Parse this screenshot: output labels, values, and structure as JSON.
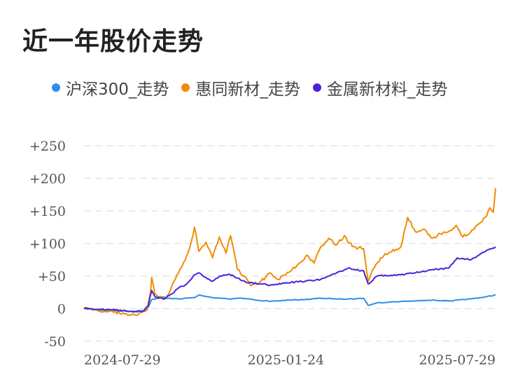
{
  "title": "近一年股价走势",
  "colors": {
    "csi300": "#2f8ee6",
    "huitong": "#f08c00",
    "metals": "#4a22d8",
    "grid": "#e5e5e5"
  },
  "chart_data": {
    "type": "line",
    "title": "近一年股价走势",
    "xlabel": "",
    "ylabel": "",
    "x_tick_labels": [
      "2024-07-29",
      "2025-01-24",
      "2025-07-29"
    ],
    "x_range": [
      "2024-07-29",
      "2025-07-29"
    ],
    "y_tick_labels": [
      "+250",
      "+200",
      "+150",
      "+100",
      "+50",
      "0",
      "-50"
    ],
    "y_tick_values": [
      250,
      200,
      150,
      100,
      50,
      0,
      -50
    ],
    "ylim": [
      -50,
      250
    ],
    "grid": "horizontal dashed",
    "legend_position": "top",
    "series": [
      {
        "name": "沪深300_走势",
        "color": "#2f8ee6",
        "points": [
          [
            "2024-07-29",
            0
          ],
          [
            "2024-08-12",
            -2
          ],
          [
            "2024-08-26",
            -3
          ],
          [
            "2024-09-09",
            -4
          ],
          [
            "2024-09-20",
            -3
          ],
          [
            "2024-09-24",
            2
          ],
          [
            "2024-09-27",
            14
          ],
          [
            "2024-10-08",
            18
          ],
          [
            "2024-10-09",
            16
          ],
          [
            "2024-10-21",
            15
          ],
          [
            "2024-11-04",
            17
          ],
          [
            "2024-11-08",
            21
          ],
          [
            "2024-11-20",
            17
          ],
          [
            "2024-12-05",
            15
          ],
          [
            "2024-12-16",
            16
          ],
          [
            "2024-12-31",
            13
          ],
          [
            "2025-01-10",
            11
          ],
          [
            "2025-01-24",
            13
          ],
          [
            "2025-02-10",
            14
          ],
          [
            "2025-02-24",
            16
          ],
          [
            "2025-03-10",
            15
          ],
          [
            "2025-03-24",
            15
          ],
          [
            "2025-04-03",
            16
          ],
          [
            "2025-04-07",
            5
          ],
          [
            "2025-04-15",
            9
          ],
          [
            "2025-05-05",
            11
          ],
          [
            "2025-05-20",
            12
          ],
          [
            "2025-06-05",
            13
          ],
          [
            "2025-06-20",
            12
          ],
          [
            "2025-07-07",
            15
          ],
          [
            "2025-07-20",
            18
          ],
          [
            "2025-07-29",
            21
          ]
        ]
      },
      {
        "name": "惠同新材_走势",
        "color": "#f08c00",
        "points": [
          [
            "2024-07-29",
            0
          ],
          [
            "2024-08-08",
            -2
          ],
          [
            "2024-08-20",
            -4
          ],
          [
            "2024-09-03",
            -8
          ],
          [
            "2024-09-13",
            -10
          ],
          [
            "2024-09-18",
            -6
          ],
          [
            "2024-09-23",
            -2
          ],
          [
            "2024-09-26",
            25
          ],
          [
            "2024-09-27",
            48
          ],
          [
            "2024-09-30",
            22
          ],
          [
            "2024-10-08",
            14
          ],
          [
            "2024-10-14",
            30
          ],
          [
            "2024-10-18",
            45
          ],
          [
            "2024-10-25",
            70
          ],
          [
            "2024-10-31",
            95
          ],
          [
            "2024-11-04",
            125
          ],
          [
            "2024-11-08",
            88
          ],
          [
            "2024-11-14",
            102
          ],
          [
            "2024-11-20",
            78
          ],
          [
            "2024-11-26",
            110
          ],
          [
            "2024-12-02",
            85
          ],
          [
            "2024-12-06",
            112
          ],
          [
            "2024-12-12",
            60
          ],
          [
            "2024-12-18",
            50
          ],
          [
            "2024-12-24",
            35
          ],
          [
            "2025-01-02",
            42
          ],
          [
            "2025-01-10",
            55
          ],
          [
            "2025-01-17",
            45
          ],
          [
            "2025-01-24",
            52
          ],
          [
            "2025-02-05",
            70
          ],
          [
            "2025-02-12",
            82
          ],
          [
            "2025-02-18",
            70
          ],
          [
            "2025-02-24",
            95
          ],
          [
            "2025-03-03",
            108
          ],
          [
            "2025-03-10",
            98
          ],
          [
            "2025-03-17",
            112
          ],
          [
            "2025-03-24",
            95
          ],
          [
            "2025-04-03",
            92
          ],
          [
            "2025-04-07",
            42
          ],
          [
            "2025-04-11",
            60
          ],
          [
            "2025-04-18",
            78
          ],
          [
            "2025-04-25",
            85
          ],
          [
            "2025-05-06",
            95
          ],
          [
            "2025-05-12",
            140
          ],
          [
            "2025-05-19",
            118
          ],
          [
            "2025-05-26",
            122
          ],
          [
            "2025-06-03",
            108
          ],
          [
            "2025-06-10",
            115
          ],
          [
            "2025-06-17",
            118
          ],
          [
            "2025-06-24",
            128
          ],
          [
            "2025-06-30",
            110
          ],
          [
            "2025-07-07",
            118
          ],
          [
            "2025-07-14",
            130
          ],
          [
            "2025-07-20",
            140
          ],
          [
            "2025-07-24",
            155
          ],
          [
            "2025-07-27",
            148
          ],
          [
            "2025-07-29",
            185
          ]
        ]
      },
      {
        "name": "金属新材料_走势",
        "color": "#4a22d8",
        "points": [
          [
            "2024-07-29",
            0
          ],
          [
            "2024-08-12",
            -1
          ],
          [
            "2024-08-26",
            -2
          ],
          [
            "2024-09-09",
            -4
          ],
          [
            "2024-09-20",
            -4
          ],
          [
            "2024-09-24",
            5
          ],
          [
            "2024-09-27",
            28
          ],
          [
            "2024-09-30",
            18
          ],
          [
            "2024-10-08",
            15
          ],
          [
            "2024-10-14",
            22
          ],
          [
            "2024-10-21",
            32
          ],
          [
            "2024-10-28",
            38
          ],
          [
            "2024-11-04",
            52
          ],
          [
            "2024-11-08",
            55
          ],
          [
            "2024-11-14",
            48
          ],
          [
            "2024-11-20",
            42
          ],
          [
            "2024-11-26",
            50
          ],
          [
            "2024-12-05",
            53
          ],
          [
            "2024-12-12",
            47
          ],
          [
            "2024-12-20",
            40
          ],
          [
            "2024-12-31",
            38
          ],
          [
            "2025-01-10",
            36
          ],
          [
            "2025-01-24",
            40
          ],
          [
            "2025-02-10",
            42
          ],
          [
            "2025-02-24",
            45
          ],
          [
            "2025-03-10",
            55
          ],
          [
            "2025-03-20",
            62
          ],
          [
            "2025-04-03",
            58
          ],
          [
            "2025-04-07",
            38
          ],
          [
            "2025-04-15",
            50
          ],
          [
            "2025-05-06",
            52
          ],
          [
            "2025-05-19",
            55
          ],
          [
            "2025-06-03",
            60
          ],
          [
            "2025-06-17",
            62
          ],
          [
            "2025-06-25",
            78
          ],
          [
            "2025-07-07",
            75
          ],
          [
            "2025-07-14",
            82
          ],
          [
            "2025-07-20",
            88
          ],
          [
            "2025-07-29",
            95
          ]
        ]
      }
    ]
  }
}
